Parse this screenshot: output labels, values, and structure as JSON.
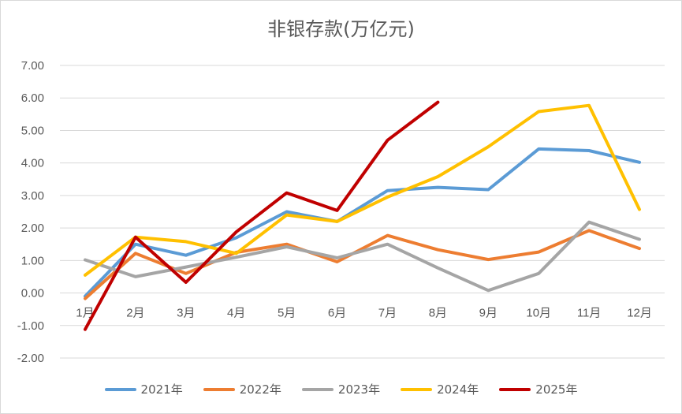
{
  "chart_data": {
    "type": "line",
    "title": "非银存款(万亿元)",
    "xlabel": "",
    "ylabel": "",
    "categories": [
      "1月",
      "2月",
      "3月",
      "4月",
      "5月",
      "6月",
      "7月",
      "8月",
      "9月",
      "10月",
      "11月",
      "12月"
    ],
    "ylim": [
      -2,
      7
    ],
    "yticks": [
      "-2.00",
      "-1.00",
      "0.00",
      "1.00",
      "2.00",
      "3.00",
      "4.00",
      "5.00",
      "6.00",
      "7.00"
    ],
    "grid": true,
    "legend_position": "bottom",
    "series": [
      {
        "name": "2021年",
        "color": "#5b9bd5",
        "values": [
          -0.1,
          1.5,
          1.16,
          1.7,
          2.5,
          2.2,
          3.15,
          3.25,
          3.18,
          4.43,
          4.38,
          4.02
        ]
      },
      {
        "name": "2022年",
        "color": "#ed7d31",
        "values": [
          -0.17,
          1.22,
          0.6,
          1.25,
          1.5,
          0.96,
          1.77,
          1.33,
          1.03,
          1.26,
          1.92,
          1.37
        ]
      },
      {
        "name": "2023年",
        "color": "#a5a5a5",
        "values": [
          1.02,
          0.5,
          0.8,
          1.1,
          1.42,
          1.08,
          1.5,
          0.77,
          0.08,
          0.6,
          2.18,
          1.65
        ]
      },
      {
        "name": "2024年",
        "color": "#ffc000",
        "values": [
          0.55,
          1.72,
          1.58,
          1.22,
          2.4,
          2.2,
          2.95,
          3.58,
          4.5,
          5.58,
          5.77,
          2.57
        ]
      },
      {
        "name": "2025年",
        "color": "#c00000",
        "values": [
          -1.12,
          1.72,
          0.33,
          1.88,
          3.08,
          2.54,
          4.7,
          5.87,
          null,
          null,
          null,
          null
        ]
      }
    ]
  }
}
